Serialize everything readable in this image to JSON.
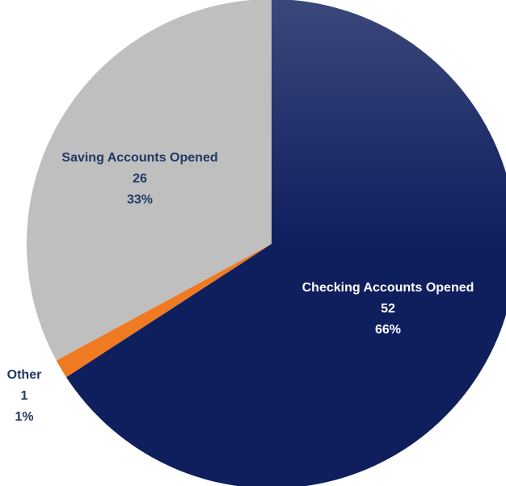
{
  "chart_data": {
    "type": "pie",
    "categories": [
      "Checking Accounts Opened",
      "Other",
      "Saving Accounts Opened"
    ],
    "values": [
      52,
      1,
      26
    ],
    "percent_labels": [
      "66%",
      "1%",
      "33%"
    ],
    "colors": [
      "#0f1f5e",
      "#f07a22",
      "#bfbfbf"
    ],
    "label_colors": [
      "#ffffff",
      "#1f3864",
      "#1f3864"
    ]
  }
}
